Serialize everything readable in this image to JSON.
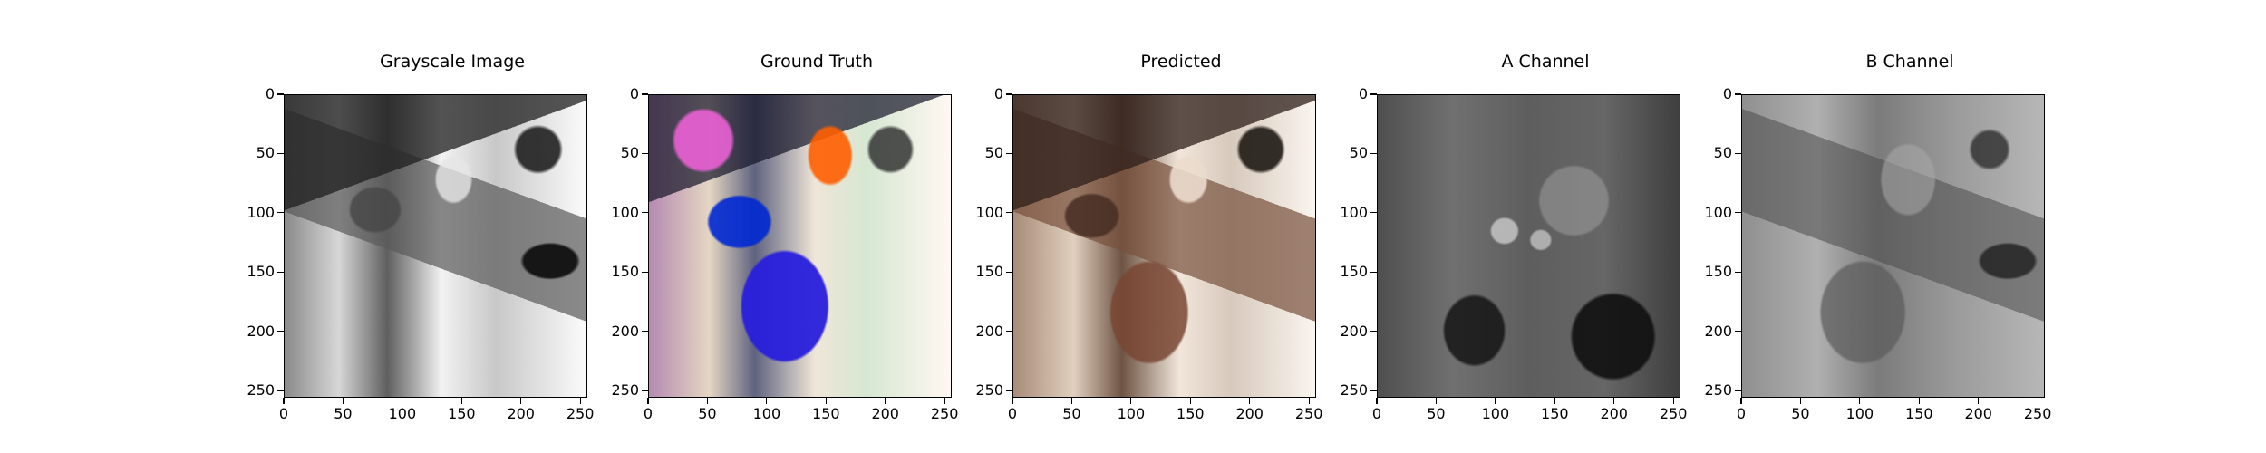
{
  "panels": [
    {
      "title": "Grayscale Image"
    },
    {
      "title": "Ground Truth"
    },
    {
      "title": "Predicted"
    },
    {
      "title": "A Channel"
    },
    {
      "title": "B Channel"
    }
  ],
  "axis": {
    "xticks": [
      "0",
      "50",
      "100",
      "150",
      "200",
      "250"
    ],
    "yticks": [
      "0",
      "50",
      "100",
      "150",
      "200",
      "250"
    ]
  }
}
